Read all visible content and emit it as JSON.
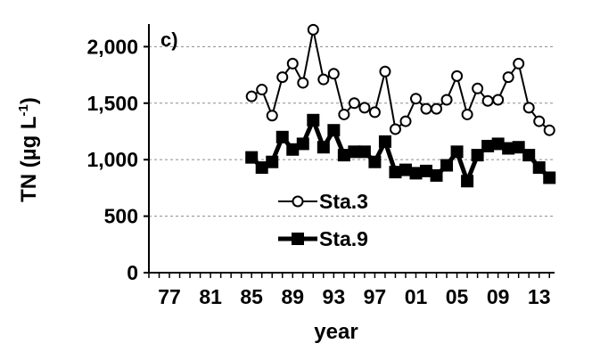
{
  "chart_data": {
    "type": "line",
    "panel_label": "c)",
    "xlabel": "year",
    "ylabel_main": "TN (µg L",
    "ylabel_sup": "-1",
    "ylabel_close": ")",
    "x_ticks": [
      "77",
      "81",
      "85",
      "89",
      "93",
      "97",
      "01",
      "05",
      "09",
      "13"
    ],
    "x_tick_years": [
      1977,
      1981,
      1985,
      1989,
      1993,
      1997,
      2001,
      2005,
      2009,
      2013
    ],
    "y_ticks": [
      "0",
      "500",
      "1,000",
      "1,500",
      "2,000"
    ],
    "y_tick_values": [
      0,
      500,
      1000,
      1500,
      2000
    ],
    "xlim": [
      1975,
      2014.5
    ],
    "ylim": [
      0,
      2200
    ],
    "grid": "horizontal dashed",
    "legend_position": "lower-left inside plot",
    "x": [
      1985,
      1986,
      1987,
      1988,
      1989,
      1990,
      1991,
      1992,
      1993,
      1994,
      1995,
      1996,
      1997,
      1998,
      1999,
      2000,
      2001,
      2002,
      2003,
      2004,
      2005,
      2006,
      2007,
      2008,
      2009,
      2010,
      2011,
      2012,
      2013,
      2014
    ],
    "series": [
      {
        "name": "Sta.3",
        "marker": "open-circle",
        "values": [
          1560,
          1620,
          1390,
          1730,
          1850,
          1680,
          2150,
          1710,
          1760,
          1400,
          1500,
          1460,
          1420,
          1780,
          1270,
          1340,
          1540,
          1450,
          1450,
          1530,
          1740,
          1400,
          1630,
          1520,
          1530,
          1730,
          1850,
          1460,
          1340,
          1260
        ]
      },
      {
        "name": "Sta.9",
        "marker": "filled-square",
        "values": [
          1020,
          930,
          980,
          1200,
          1090,
          1140,
          1350,
          1110,
          1260,
          1040,
          1070,
          1070,
          980,
          1160,
          890,
          910,
          880,
          900,
          860,
          950,
          1070,
          810,
          1040,
          1120,
          1140,
          1100,
          1110,
          1040,
          930,
          840
        ]
      }
    ]
  }
}
